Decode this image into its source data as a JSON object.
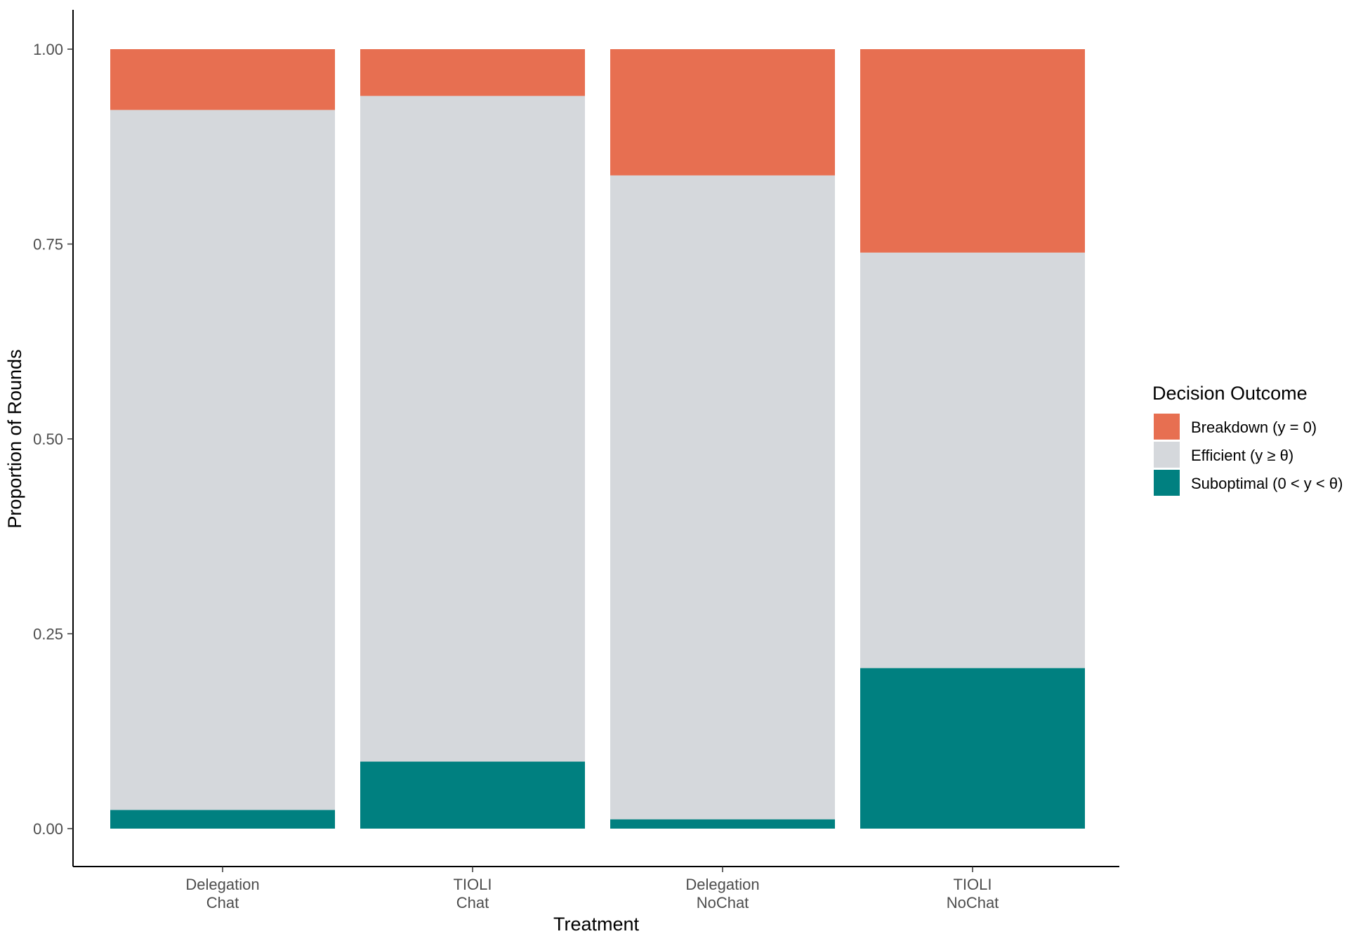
{
  "chart_data": {
    "type": "bar",
    "stacked": true,
    "categories": [
      {
        "line1": "Delegation",
        "line2": "Chat"
      },
      {
        "line1": "TIOLI",
        "line2": "Chat"
      },
      {
        "line1": "Delegation",
        "line2": "NoChat"
      },
      {
        "line1": "TIOLI",
        "line2": "NoChat"
      }
    ],
    "series": [
      {
        "name": "Suboptimal",
        "legend_label": "Suboptimal (0 < y < θ)",
        "color": "#008080",
        "values": [
          0.024,
          0.086,
          0.012,
          0.206
        ]
      },
      {
        "name": "Efficient",
        "legend_label": "Efficient (y ≥ θ)",
        "color": "#D5D8DC",
        "values": [
          0.898,
          0.854,
          0.826,
          0.533
        ]
      },
      {
        "name": "Breakdown",
        "legend_label": "Breakdown (y = 0)",
        "color": "#E76F51",
        "values": [
          0.078,
          0.06,
          0.162,
          0.261
        ]
      }
    ],
    "legend_order": [
      "Breakdown",
      "Efficient",
      "Suboptimal"
    ],
    "xlabel": "Treatment",
    "ylabel": "Proportion of Rounds",
    "ylim": [
      0,
      1
    ],
    "yticks": [
      "0.00",
      "0.25",
      "0.50",
      "0.75",
      "1.00"
    ],
    "legend_title": "Decision Outcome",
    "legend_position": "right"
  }
}
